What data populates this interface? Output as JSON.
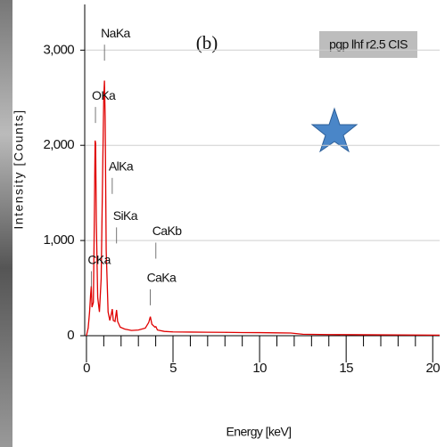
{
  "chart_data": {
    "type": "line",
    "panel_label": "(b)",
    "xlabel": "Energy [keV]",
    "ylabel": "Intensity [Counts]",
    "xlim": [
      -0.1,
      20.4
    ],
    "ylim": [
      0,
      3480
    ],
    "xticks": [
      0,
      5,
      10,
      15,
      20
    ],
    "x_minor_ticks": [
      1,
      2,
      3,
      4,
      6,
      7,
      8,
      9,
      11,
      12,
      13,
      14,
      16,
      17,
      18,
      19
    ],
    "yticks": [
      0,
      {
        "value": 1000,
        "label": "1,000"
      },
      {
        "value": 2000,
        "label": "2,000"
      },
      {
        "value": 3000,
        "label": "3,000"
      }
    ],
    "grid": true,
    "legend": "top-right",
    "x": [
      0,
      0.1,
      0.18,
      0.24,
      0.28,
      0.32,
      0.4,
      0.46,
      0.5,
      0.53,
      0.57,
      0.65,
      0.75,
      0.85,
      0.95,
      1.0,
      1.04,
      1.08,
      1.14,
      1.25,
      1.35,
      1.45,
      1.49,
      1.55,
      1.65,
      1.74,
      1.8,
      1.95,
      2.2,
      2.6,
      3.0,
      3.4,
      3.6,
      3.69,
      3.78,
      3.95,
      4.01,
      4.1,
      4.5,
      5,
      6,
      7,
      8,
      9,
      10,
      11,
      11.8,
      12.5,
      14,
      16,
      18,
      20.4
    ],
    "series": [
      {
        "name": "pgp lhf r2.5 CIS",
        "color": "#e00000",
        "values": [
          0,
          80,
          250,
          430,
          520,
          300,
          350,
          1300,
          2050,
          2020,
          1200,
          400,
          250,
          600,
          1900,
          2500,
          2680,
          2300,
          900,
          250,
          160,
          240,
          280,
          160,
          150,
          270,
          150,
          90,
          70,
          55,
          60,
          80,
          140,
          200,
          120,
          90,
          95,
          60,
          45,
          40,
          38,
          36,
          35,
          33,
          32,
          30,
          28,
          15,
          12,
          10,
          8,
          6
        ]
      }
    ],
    "annotations": [
      {
        "text": "NaKa",
        "x": 1.04,
        "y": 3170
      },
      {
        "text": "OKa",
        "x": 0.52,
        "y": 2515
      },
      {
        "text": "AlKa",
        "x": 1.49,
        "y": 1770
      },
      {
        "text": "SiKa",
        "x": 1.74,
        "y": 1250
      },
      {
        "text": "CaKb",
        "x": 4.01,
        "y": 1090
      },
      {
        "text": "CaKa",
        "x": 3.69,
        "y": 600
      },
      {
        "text": "CKa",
        "x": 0.28,
        "y": 790
      }
    ]
  }
}
